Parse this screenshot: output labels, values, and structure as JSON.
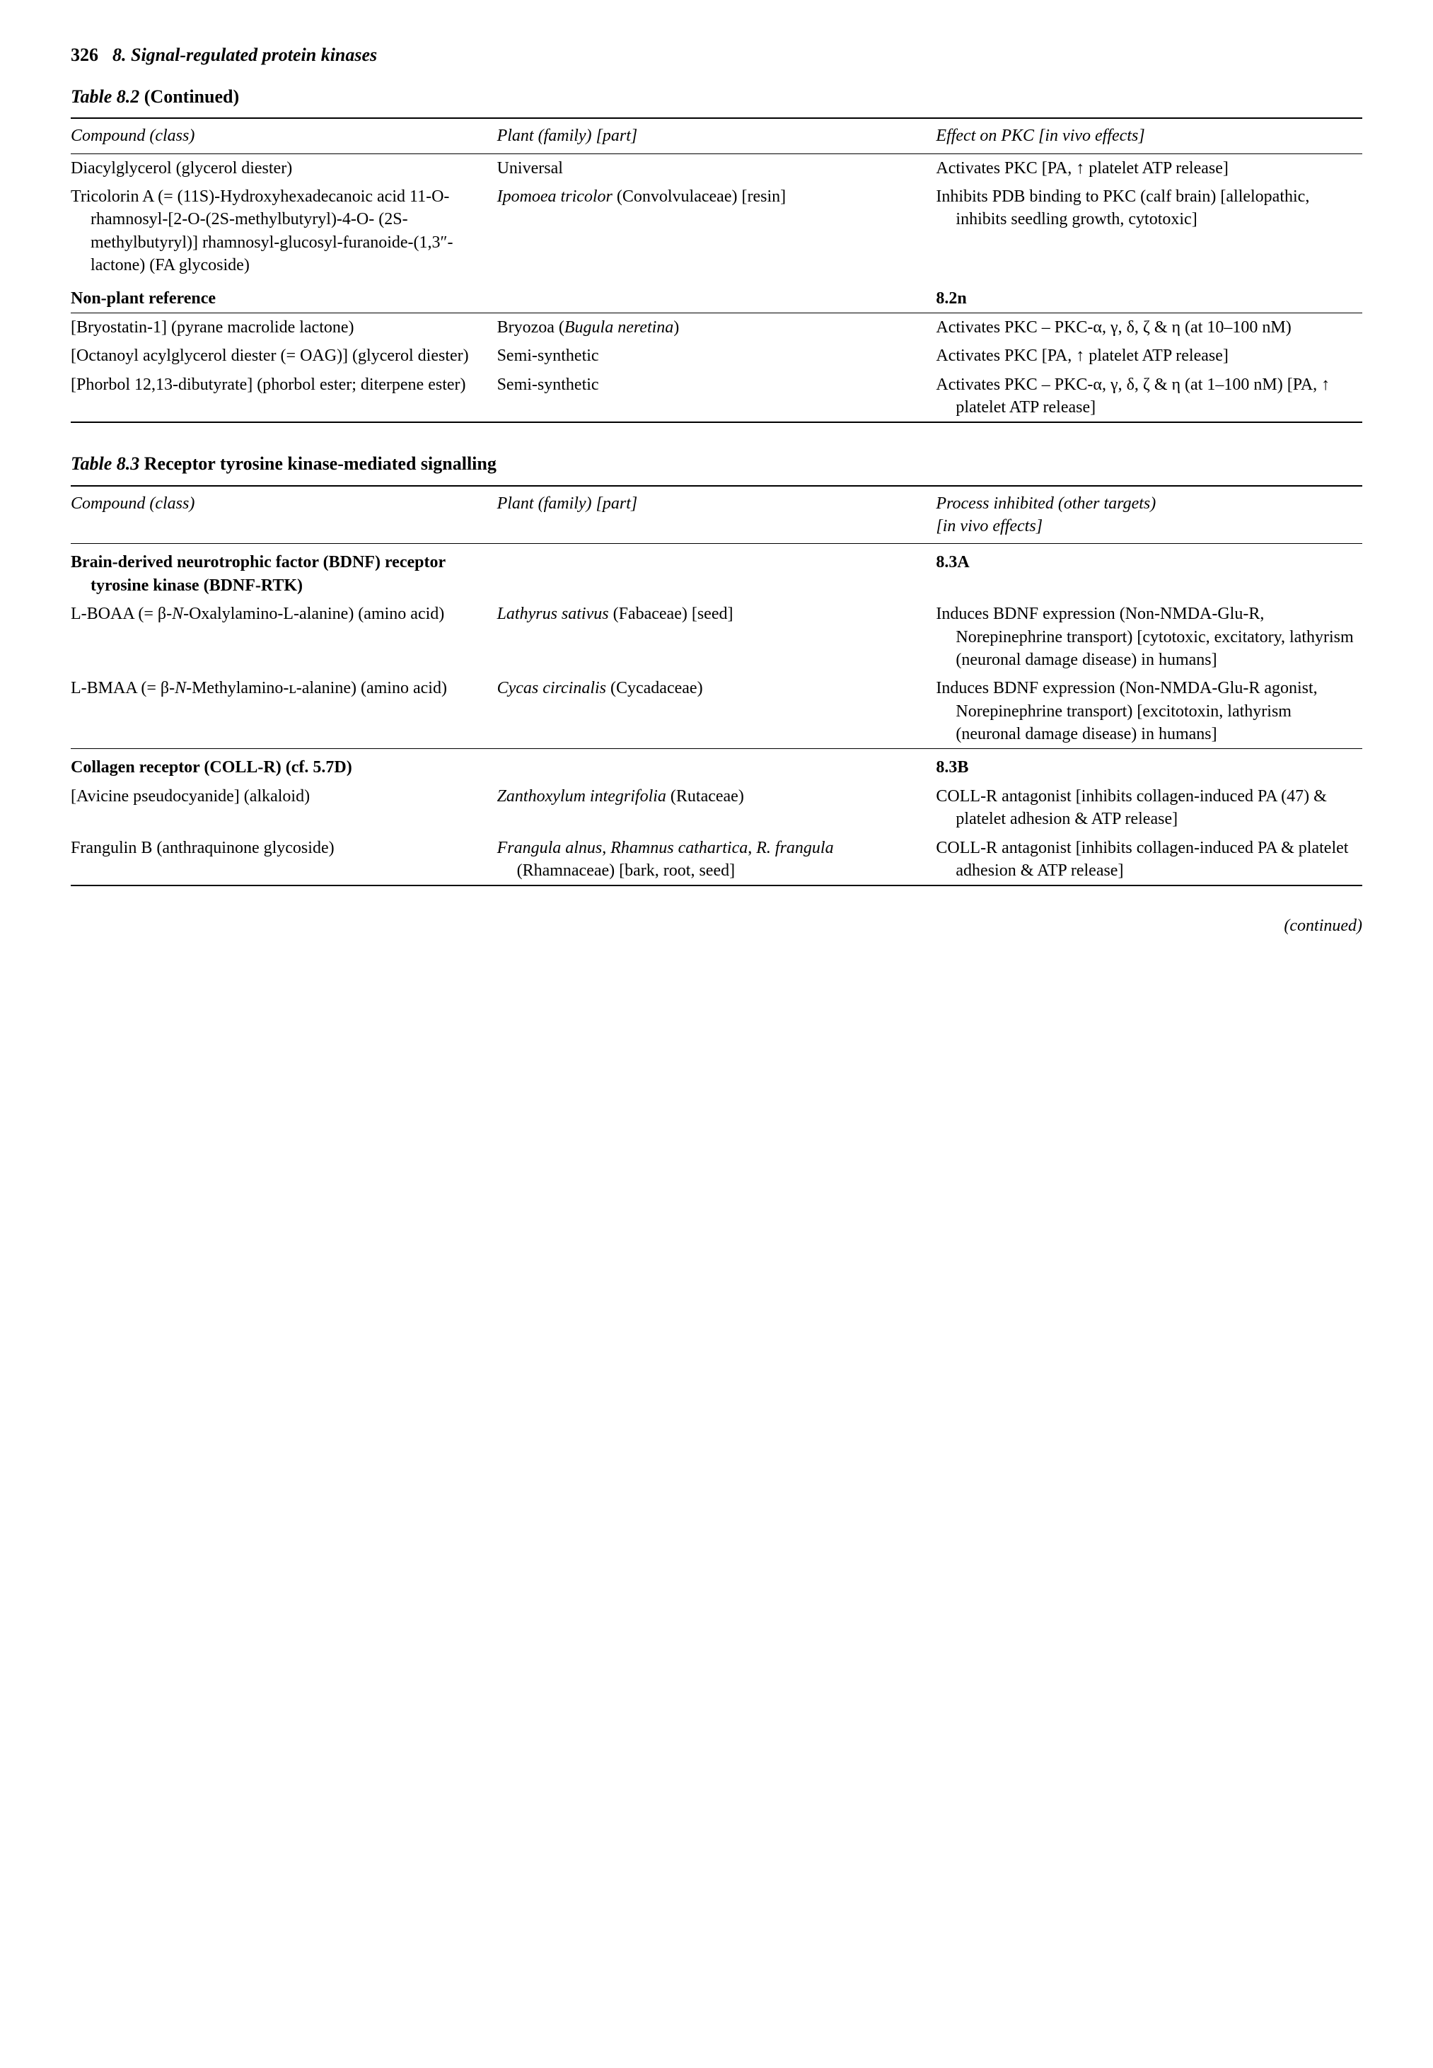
{
  "header": {
    "page_number": "326",
    "chapter": "8. Signal-regulated protein kinases"
  },
  "table82": {
    "caption_prefix": "Table 8.2",
    "caption_suffix": " (Continued)",
    "columns": {
      "c1": "Compound (class)",
      "c2": "Plant (family) [part]",
      "c3": "Effect on PKC [in vivo effects]"
    },
    "rows": [
      {
        "compound": "Diacylglycerol (glycerol diester)",
        "plant": "Universal",
        "effect": "Activates PKC [PA, ↑ platelet ATP release]"
      },
      {
        "compound": "Tricolorin A (= (11S)-Hydroxyhexadecanoic acid 11-O-rhamnosyl-[2-O-(2S-methylbutyryl)-4-O- (2S-methylbutyryl)] rhamnosyl-glucosyl-furanoide-(1,3″-lactone) (FA glycoside)",
        "plant_italic": "Ipomoea tricolor",
        "plant_rest": " (Convolvulaceae) [resin]",
        "effect": "Inhibits PDB binding to PKC (calf brain) [allelopathic, inhibits seedling growth, cytotoxic]"
      }
    ],
    "section": {
      "label": "Non-plant reference",
      "ref": "8.2n"
    },
    "rows2": [
      {
        "compound": "[Bryostatin-1] (pyrane macrolide lactone)",
        "plant_pre": "Bryozoa (",
        "plant_italic": "Bugula neretina",
        "plant_post": ")",
        "effect": "Activates PKC – PKC-α, γ, δ, ζ & η (at 10–100 nM)"
      },
      {
        "compound": "[Octanoyl acylglycerol diester (= OAG)] (glycerol diester)",
        "plant": "Semi-synthetic",
        "effect": "Activates PKC [PA, ↑ platelet ATP release]"
      },
      {
        "compound": "[Phorbol 12,13-dibutyrate] (phorbol ester; diterpene ester)",
        "plant": "Semi-synthetic",
        "effect": "Activates PKC – PKC-α, γ, δ, ζ & η (at 1–100 nM) [PA, ↑ platelet ATP release]"
      }
    ]
  },
  "table83": {
    "caption_prefix": "Table 8.3",
    "caption_title": " Receptor tyrosine kinase-mediated signalling",
    "columns": {
      "c1": "Compound (class)",
      "c2": "Plant (family) [part]",
      "c3a": "Process inhibited (other targets)",
      "c3b": "[in vivo effects]"
    },
    "sectionA": {
      "label": "Brain-derived neurotrophic factor (BDNF) receptor tyrosine kinase (BDNF-RTK)",
      "ref": "8.3A"
    },
    "rowsA": [
      {
        "compound_pre": "L-BOAA (= β-",
        "compound_italic": "N",
        "compound_post": "-Oxalylamino-L-alanine) (amino acid)",
        "plant_italic": "Lathyrus sativus",
        "plant_rest": " (Fabaceae) [seed]",
        "effect": "Induces BDNF expression (Non-NMDA-Glu-R, Norepinephrine transport) [cytotoxic, excitatory, lathyrism (neuronal damage disease) in humans]"
      },
      {
        "compound_pre": "L-BMAA (= β-",
        "compound_italic": "N",
        "compound_post": "-Methylamino-ʟ-alanine) (amino acid)",
        "plant_italic": "Cycas circinalis",
        "plant_rest": " (Cycadaceae)",
        "effect": "Induces BDNF expression (Non-NMDA-Glu-R agonist, Norepinephrine transport) [excitotoxin, lathyrism (neuronal damage disease) in humans]"
      }
    ],
    "sectionB": {
      "label": "Collagen receptor (COLL-R) (cf. 5.7D)",
      "ref": "8.3B"
    },
    "rowsB": [
      {
        "compound": "[Avicine pseudocyanide] (alkaloid)",
        "plant_italic": "Zanthoxylum integrifolia",
        "plant_rest": " (Rutaceae)",
        "effect": "COLL-R antagonist [inhibits collagen-induced PA (47) & platelet adhesion & ATP release]"
      },
      {
        "compound": "Frangulin B (anthraquinone glycoside)",
        "plant_italic": "Frangula alnus",
        "plant_mid": ", ",
        "plant_italic2": "Rhamnus cathartica",
        "plant_mid2": ", ",
        "plant_italic3": "R. frangula",
        "plant_rest": " (Rhamnaceae) [bark, root, seed]",
        "effect": "COLL-R antagonist [inhibits collagen-induced PA & platelet adhesion & ATP release]"
      }
    ]
  },
  "footer": {
    "continued": "(continued)"
  }
}
